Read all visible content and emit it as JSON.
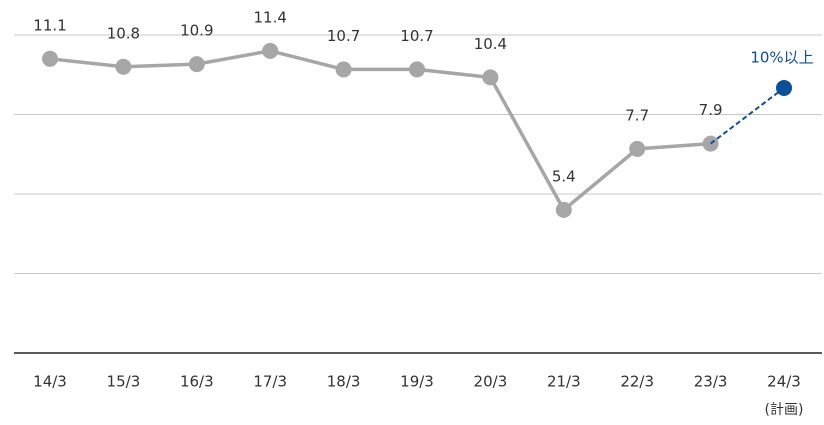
{
  "chart_data": {
    "type": "line",
    "categories": [
      "14/3",
      "15/3",
      "16/3",
      "17/3",
      "18/3",
      "19/3",
      "20/3",
      "21/3",
      "22/3",
      "23/3",
      "24/3"
    ],
    "category_note": "(計画)",
    "series": [
      {
        "color": "#a6a6a6",
        "values": [
          11.1,
          10.8,
          10.9,
          11.4,
          10.7,
          10.7,
          10.4,
          5.4,
          7.7,
          7.9,
          null
        ]
      },
      {
        "color": "#0a4f9c",
        "dashed": true,
        "values": [
          null,
          null,
          null,
          null,
          null,
          null,
          null,
          null,
          null,
          null,
          10
        ],
        "value_labels": [
          null,
          null,
          null,
          null,
          null,
          null,
          null,
          null,
          null,
          null,
          "10%以上"
        ]
      }
    ],
    "ylim": [
      0,
      13.3
    ],
    "yticks": [
      0,
      3,
      6,
      9,
      12
    ],
    "grid": true
  }
}
